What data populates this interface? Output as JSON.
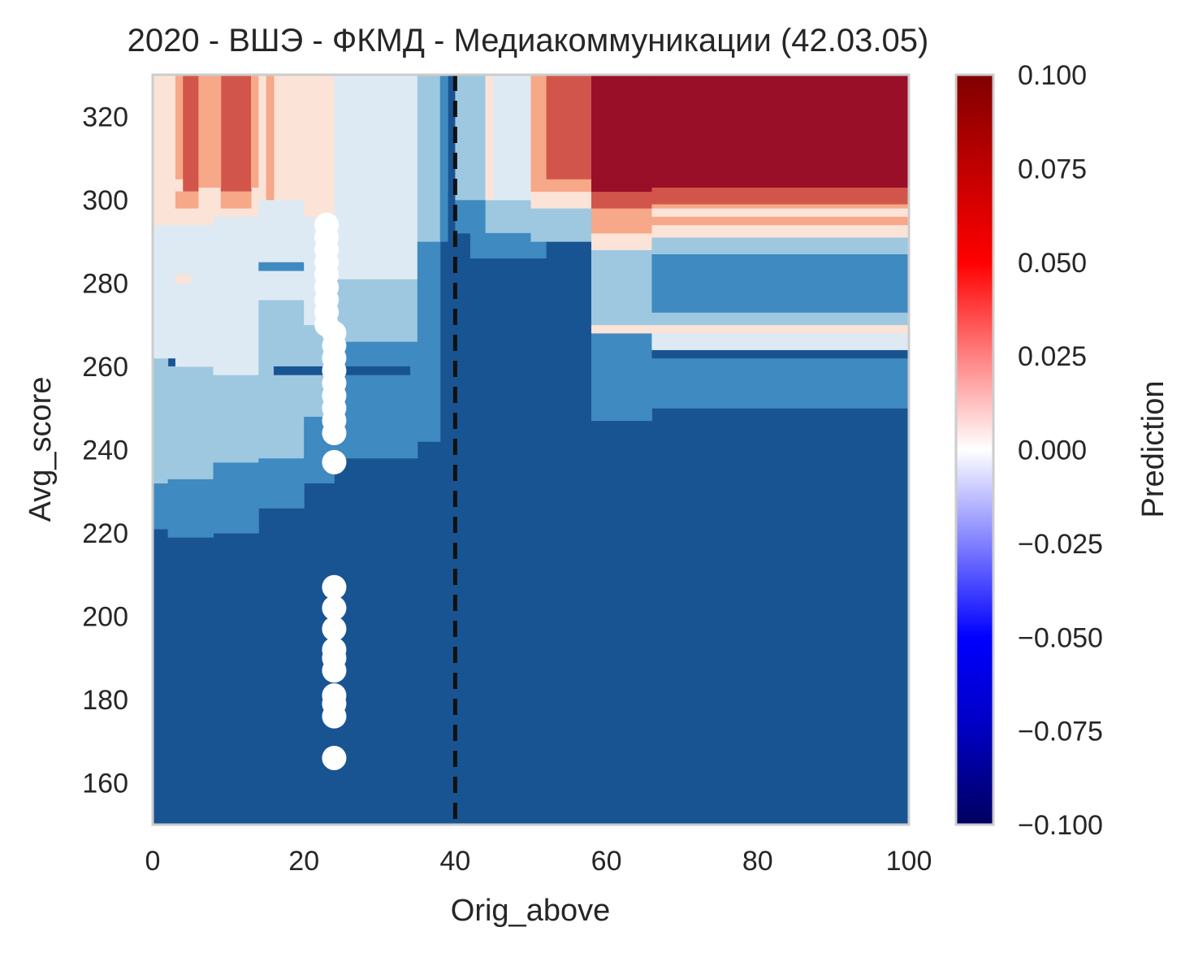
{
  "chart_data": {
    "type": "heatmap",
    "title": "2020 - ВШЭ - ФКМД - Медиакоммуникации (42.03.05)",
    "xlabel": "Orig_above",
    "ylabel": "Avg_score",
    "xlim": [
      0,
      100
    ],
    "ylim": [
      150,
      330
    ],
    "x_ticks": [
      "0",
      "20",
      "40",
      "60",
      "80",
      "100"
    ],
    "y_ticks": [
      "160",
      "180",
      "200",
      "220",
      "240",
      "260",
      "280",
      "300",
      "320"
    ],
    "x_tick_values": [
      0,
      20,
      40,
      60,
      80,
      100
    ],
    "y_tick_values": [
      160,
      180,
      200,
      220,
      240,
      260,
      280,
      300,
      320
    ],
    "threshold_x": 40,
    "colorbar": {
      "label": "Prediction",
      "range": [
        -0.1,
        0.1
      ],
      "tick_values": [
        0.1,
        0.075,
        0.05,
        0.025,
        0.0,
        -0.025,
        -0.05,
        -0.075,
        -0.1
      ],
      "tick_labels": [
        "0.100",
        "0.075",
        "0.050",
        "0.025",
        "0.000",
        "−0.025",
        "−0.050",
        "−0.075",
        "−0.100"
      ]
    },
    "contour_levels": {
      "dark_red": 0.09,
      "red": 0.07,
      "salmon": 0.04,
      "pale_pink": 0.01,
      "pale_blue": -0.01,
      "light_blue": -0.04,
      "mid_blue": -0.07,
      "dark_blue": -0.09
    },
    "regions": [
      {
        "x": [
          0,
          100
        ],
        "y": [
          150,
          330
        ],
        "level": "dark_blue"
      },
      {
        "x": [
          0,
          2
        ],
        "y": [
          221,
          232
        ],
        "level": "mid_blue"
      },
      {
        "x": [
          0,
          2
        ],
        "y": [
          232,
          262
        ],
        "level": "light_blue"
      },
      {
        "x": [
          0,
          3
        ],
        "y": [
          262,
          294
        ],
        "level": "pale_blue"
      },
      {
        "x": [
          0,
          3
        ],
        "y": [
          294,
          330
        ],
        "level": "pale_pink"
      },
      {
        "x": [
          2,
          8
        ],
        "y": [
          219,
          233
        ],
        "level": "mid_blue"
      },
      {
        "x": [
          2,
          8
        ],
        "y": [
          233,
          260
        ],
        "level": "light_blue"
      },
      {
        "x": [
          3,
          8
        ],
        "y": [
          260,
          294
        ],
        "level": "pale_blue"
      },
      {
        "x": [
          3,
          8
        ],
        "y": [
          294,
          330
        ],
        "level": "pale_pink"
      },
      {
        "x": [
          3,
          4
        ],
        "y": [
          305,
          330
        ],
        "level": "salmon"
      },
      {
        "x": [
          6,
          8
        ],
        "y": [
          303,
          330
        ],
        "level": "salmon"
      },
      {
        "x": [
          4,
          6
        ],
        "y": [
          302,
          330
        ],
        "level": "red"
      },
      {
        "x": [
          3,
          6
        ],
        "y": [
          298,
          302
        ],
        "level": "salmon"
      },
      {
        "x": [
          3,
          5
        ],
        "y": [
          280,
          282
        ],
        "level": "pale_pink"
      },
      {
        "x": [
          8,
          14
        ],
        "y": [
          220,
          237
        ],
        "level": "mid_blue"
      },
      {
        "x": [
          8,
          14
        ],
        "y": [
          237,
          258
        ],
        "level": "light_blue"
      },
      {
        "x": [
          8,
          14
        ],
        "y": [
          258,
          296
        ],
        "level": "pale_blue"
      },
      {
        "x": [
          8,
          14
        ],
        "y": [
          296,
          330
        ],
        "level": "pale_pink"
      },
      {
        "x": [
          9,
          13
        ],
        "y": [
          302,
          330
        ],
        "level": "red"
      },
      {
        "x": [
          8,
          9
        ],
        "y": [
          303,
          330
        ],
        "level": "salmon"
      },
      {
        "x": [
          13,
          14
        ],
        "y": [
          303,
          330
        ],
        "level": "salmon"
      },
      {
        "x": [
          9,
          13
        ],
        "y": [
          298,
          302
        ],
        "level": "salmon"
      },
      {
        "x": [
          14,
          20
        ],
        "y": [
          226,
          238
        ],
        "level": "mid_blue"
      },
      {
        "x": [
          14,
          20
        ],
        "y": [
          238,
          256
        ],
        "level": "light_blue"
      },
      {
        "x": [
          14,
          20
        ],
        "y": [
          256,
          276
        ],
        "level": "light_blue"
      },
      {
        "x": [
          14,
          20
        ],
        "y": [
          276,
          300
        ],
        "level": "pale_blue"
      },
      {
        "x": [
          14,
          15
        ],
        "y": [
          300,
          330
        ],
        "level": "pale_pink"
      },
      {
        "x": [
          16,
          20
        ],
        "y": [
          300,
          330
        ],
        "level": "pale_pink"
      },
      {
        "x": [
          15,
          16
        ],
        "y": [
          300,
          330
        ],
        "level": "salmon"
      },
      {
        "x": [
          14,
          22
        ],
        "y": [
          283,
          285
        ],
        "level": "mid_blue"
      },
      {
        "x": [
          20,
          24
        ],
        "y": [
          232,
          248
        ],
        "level": "mid_blue"
      },
      {
        "x": [
          20,
          24
        ],
        "y": [
          248,
          270
        ],
        "level": "light_blue"
      },
      {
        "x": [
          20,
          24
        ],
        "y": [
          270,
          296
        ],
        "level": "pale_blue"
      },
      {
        "x": [
          20,
          24
        ],
        "y": [
          296,
          330
        ],
        "level": "pale_pink"
      },
      {
        "x": [
          24,
          35
        ],
        "y": [
          238,
          252
        ],
        "level": "mid_blue"
      },
      {
        "x": [
          24,
          35
        ],
        "y": [
          252,
          266
        ],
        "level": "mid_blue"
      },
      {
        "x": [
          24,
          35
        ],
        "y": [
          266,
          281
        ],
        "level": "light_blue"
      },
      {
        "x": [
          24,
          35
        ],
        "y": [
          281,
          300
        ],
        "level": "pale_blue"
      },
      {
        "x": [
          24,
          35
        ],
        "y": [
          300,
          330
        ],
        "level": "pale_blue"
      },
      {
        "x": [
          16,
          34
        ],
        "y": [
          258,
          260
        ],
        "level": "dark_blue"
      },
      {
        "x": [
          35,
          38
        ],
        "y": [
          242,
          258
        ],
        "level": "mid_blue"
      },
      {
        "x": [
          35,
          38
        ],
        "y": [
          258,
          290
        ],
        "level": "mid_blue"
      },
      {
        "x": [
          35,
          38
        ],
        "y": [
          290,
          302
        ],
        "level": "light_blue"
      },
      {
        "x": [
          35,
          38
        ],
        "y": [
          302,
          330
        ],
        "level": "light_blue"
      },
      {
        "x": [
          37,
          39
        ],
        "y": [
          302,
          330
        ],
        "level": "light_blue"
      },
      {
        "x": [
          38,
          39
        ],
        "y": [
          290,
          330
        ],
        "level": "mid_blue"
      },
      {
        "x": [
          40,
          44
        ],
        "y": [
          292,
          300
        ],
        "level": "mid_blue"
      },
      {
        "x": [
          40,
          44
        ],
        "y": [
          300,
          330
        ],
        "level": "light_blue"
      },
      {
        "x": [
          44,
          50
        ],
        "y": [
          292,
          300
        ],
        "level": "light_blue"
      },
      {
        "x": [
          44,
          50
        ],
        "y": [
          300,
          330
        ],
        "level": "pale_blue"
      },
      {
        "x": [
          44,
          45
        ],
        "y": [
          300,
          330
        ],
        "level": "pale_pink"
      },
      {
        "x": [
          42,
          52
        ],
        "y": [
          286,
          292
        ],
        "level": "mid_blue"
      },
      {
        "x": [
          50,
          58
        ],
        "y": [
          290,
          298
        ],
        "level": "light_blue"
      },
      {
        "x": [
          50,
          58
        ],
        "y": [
          298,
          302
        ],
        "level": "pale_pink"
      },
      {
        "x": [
          50,
          58
        ],
        "y": [
          302,
          305
        ],
        "level": "salmon"
      },
      {
        "x": [
          52,
          58
        ],
        "y": [
          305,
          330
        ],
        "level": "red"
      },
      {
        "x": [
          50,
          52
        ],
        "y": [
          305,
          330
        ],
        "level": "salmon"
      },
      {
        "x": [
          58,
          66
        ],
        "y": [
          247,
          256
        ],
        "level": "mid_blue"
      },
      {
        "x": [
          58,
          66
        ],
        "y": [
          256,
          268
        ],
        "level": "mid_blue"
      },
      {
        "x": [
          58,
          66
        ],
        "y": [
          268,
          270
        ],
        "level": "pale_pink"
      },
      {
        "x": [
          58,
          66
        ],
        "y": [
          270,
          288
        ],
        "level": "light_blue"
      },
      {
        "x": [
          58,
          66
        ],
        "y": [
          288,
          292
        ],
        "level": "pale_pink"
      },
      {
        "x": [
          58,
          66
        ],
        "y": [
          292,
          298
        ],
        "level": "salmon"
      },
      {
        "x": [
          58,
          66
        ],
        "y": [
          298,
          302
        ],
        "level": "red"
      },
      {
        "x": [
          58,
          66
        ],
        "y": [
          302,
          330
        ],
        "level": "dark_red"
      },
      {
        "x": [
          66,
          100
        ],
        "y": [
          250,
          262
        ],
        "level": "mid_blue"
      },
      {
        "x": [
          66,
          100
        ],
        "y": [
          262,
          264
        ],
        "level": "dark_blue"
      },
      {
        "x": [
          66,
          100
        ],
        "y": [
          264,
          266
        ],
        "level": "pale_blue"
      },
      {
        "x": [
          66,
          100
        ],
        "y": [
          266,
          268
        ],
        "level": "pale_blue"
      },
      {
        "x": [
          66,
          100
        ],
        "y": [
          268,
          270
        ],
        "level": "pale_pink"
      },
      {
        "x": [
          66,
          100
        ],
        "y": [
          270,
          273
        ],
        "level": "light_blue"
      },
      {
        "x": [
          66,
          100
        ],
        "y": [
          273,
          287
        ],
        "level": "mid_blue"
      },
      {
        "x": [
          66,
          100
        ],
        "y": [
          287,
          291
        ],
        "level": "light_blue"
      },
      {
        "x": [
          66,
          100
        ],
        "y": [
          291,
          294
        ],
        "level": "pale_pink"
      },
      {
        "x": [
          66,
          100
        ],
        "y": [
          294,
          296
        ],
        "level": "salmon"
      },
      {
        "x": [
          66,
          100
        ],
        "y": [
          296,
          298
        ],
        "level": "pale_pink"
      },
      {
        "x": [
          66,
          100
        ],
        "y": [
          298,
          299
        ],
        "level": "salmon"
      },
      {
        "x": [
          66,
          100
        ],
        "y": [
          299,
          303
        ],
        "level": "red"
      },
      {
        "x": [
          66,
          100
        ],
        "y": [
          303,
          330
        ],
        "level": "dark_red"
      }
    ],
    "points": [
      {
        "x": 23,
        "y": 294
      },
      {
        "x": 23,
        "y": 291
      },
      {
        "x": 23,
        "y": 288
      },
      {
        "x": 23,
        "y": 285
      },
      {
        "x": 23,
        "y": 282
      },
      {
        "x": 23,
        "y": 279
      },
      {
        "x": 23,
        "y": 276
      },
      {
        "x": 23,
        "y": 273
      },
      {
        "x": 23,
        "y": 270
      },
      {
        "x": 24,
        "y": 268
      },
      {
        "x": 24,
        "y": 265
      },
      {
        "x": 24,
        "y": 262
      },
      {
        "x": 24,
        "y": 259
      },
      {
        "x": 24,
        "y": 256
      },
      {
        "x": 24,
        "y": 253
      },
      {
        "x": 24,
        "y": 250
      },
      {
        "x": 24,
        "y": 247
      },
      {
        "x": 24,
        "y": 244
      },
      {
        "x": 24,
        "y": 237
      },
      {
        "x": 24,
        "y": 207
      },
      {
        "x": 24,
        "y": 202
      },
      {
        "x": 24,
        "y": 197
      },
      {
        "x": 24,
        "y": 192
      },
      {
        "x": 24,
        "y": 190
      },
      {
        "x": 24,
        "y": 187
      },
      {
        "x": 24,
        "y": 181
      },
      {
        "x": 24,
        "y": 179
      },
      {
        "x": 24,
        "y": 176
      },
      {
        "x": 24,
        "y": 166
      }
    ],
    "level_colors": {
      "dark_red": "#980f27",
      "red": "#d1554a",
      "salmon": "#f6a888",
      "pale_pink": "#fce3d7",
      "pale_blue": "#deeaf3",
      "light_blue": "#9dc8e0",
      "mid_blue": "#3f8ac0",
      "dark_blue": "#195492"
    },
    "colorbar_gradient": [
      "#800000",
      "#c00000",
      "#ff0000",
      "#ff8080",
      "#ffffff",
      "#8080ff",
      "#0000ff",
      "#0000c0",
      "#000060"
    ],
    "point_color": "#ffffff",
    "threshold_color": "#111111"
  }
}
